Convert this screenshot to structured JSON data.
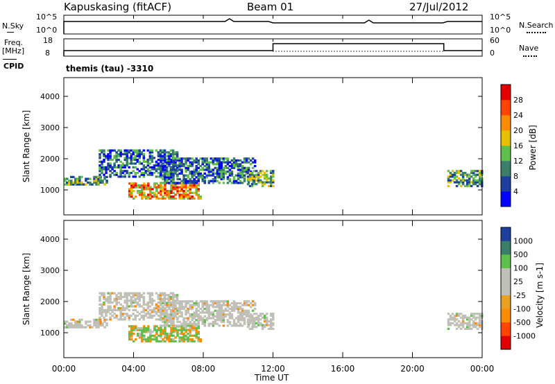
{
  "header": {
    "station": "Kapuskasing (fitACF)",
    "beam": "Beam 01",
    "date": "27/Jul/2012"
  },
  "top_panel": {
    "left_label": "N.Sky",
    "left_ticks": [
      "10^5",
      "10^0"
    ],
    "right_label": "N.Search",
    "right_ticks": [
      "10^5",
      "10^0"
    ]
  },
  "freq_panel": {
    "left_label_1": "Freq.",
    "left_label_2": "[MHz]",
    "left_ticks": [
      "18",
      "8"
    ],
    "right_label": "Nave",
    "right_ticks": [
      "60",
      "0"
    ],
    "cpid_label": "CPID",
    "cpid_text": "themis (tau) -3310"
  },
  "chart_data": [
    {
      "type": "heatmap",
      "name": "power",
      "ylabel": "Slant Range [km]",
      "yticks": [
        "4000",
        "3000",
        "2000",
        "1000"
      ],
      "ylim": [
        200,
        4600
      ],
      "xlim": [
        0,
        24
      ],
      "colorbar": {
        "label": "Power [dB]",
        "ticks": [
          "28",
          "24",
          "20",
          "16",
          "12",
          "8",
          "4"
        ],
        "colors": [
          "#0000ff",
          "#1f3f9f",
          "#3a7f6a",
          "#5fbf4a",
          "#e8c000",
          "#ff8c00",
          "#ff4500",
          "#e00000"
        ]
      },
      "echo_regions": [
        {
          "t_start": 0.0,
          "t_end": 2.5,
          "r_min": 1150,
          "r_max": 1450,
          "level": "medium"
        },
        {
          "t_start": 2.0,
          "t_end": 6.5,
          "r_min": 1400,
          "r_max": 2300,
          "level": "low"
        },
        {
          "t_start": 3.7,
          "t_end": 7.8,
          "r_min": 700,
          "r_max": 1200,
          "level": "high"
        },
        {
          "t_start": 5.5,
          "t_end": 11.0,
          "r_min": 1200,
          "r_max": 2000,
          "level": "low"
        },
        {
          "t_start": 10.5,
          "t_end": 12.0,
          "r_min": 1100,
          "r_max": 1600,
          "level": "medium"
        },
        {
          "t_start": 22.0,
          "t_end": 24.0,
          "r_min": 1100,
          "r_max": 1600,
          "level": "medium"
        }
      ]
    },
    {
      "type": "heatmap",
      "name": "velocity",
      "ylabel": "Slant Range [km]",
      "yticks": [
        "4000",
        "3000",
        "2000",
        "1000"
      ],
      "ylim": [
        200,
        4600
      ],
      "xlim": [
        0,
        24
      ],
      "xticks": [
        "00:00",
        "04:00",
        "08:00",
        "12:00",
        "16:00",
        "20:00",
        "00:00"
      ],
      "xlabel": "Time UT",
      "colorbar": {
        "label": "Velocity [m s-1]",
        "ticks": [
          "1000",
          "500",
          "100",
          "25",
          "-25",
          "-100",
          "-500",
          "-1000"
        ],
        "colors": [
          "#e00000",
          "#ff4500",
          "#ff8c00",
          "#e8a020",
          "#c0c0b8",
          "#c0c0b8",
          "#5fbf4a",
          "#3a7f6a",
          "#1f3f9f"
        ]
      }
    }
  ]
}
